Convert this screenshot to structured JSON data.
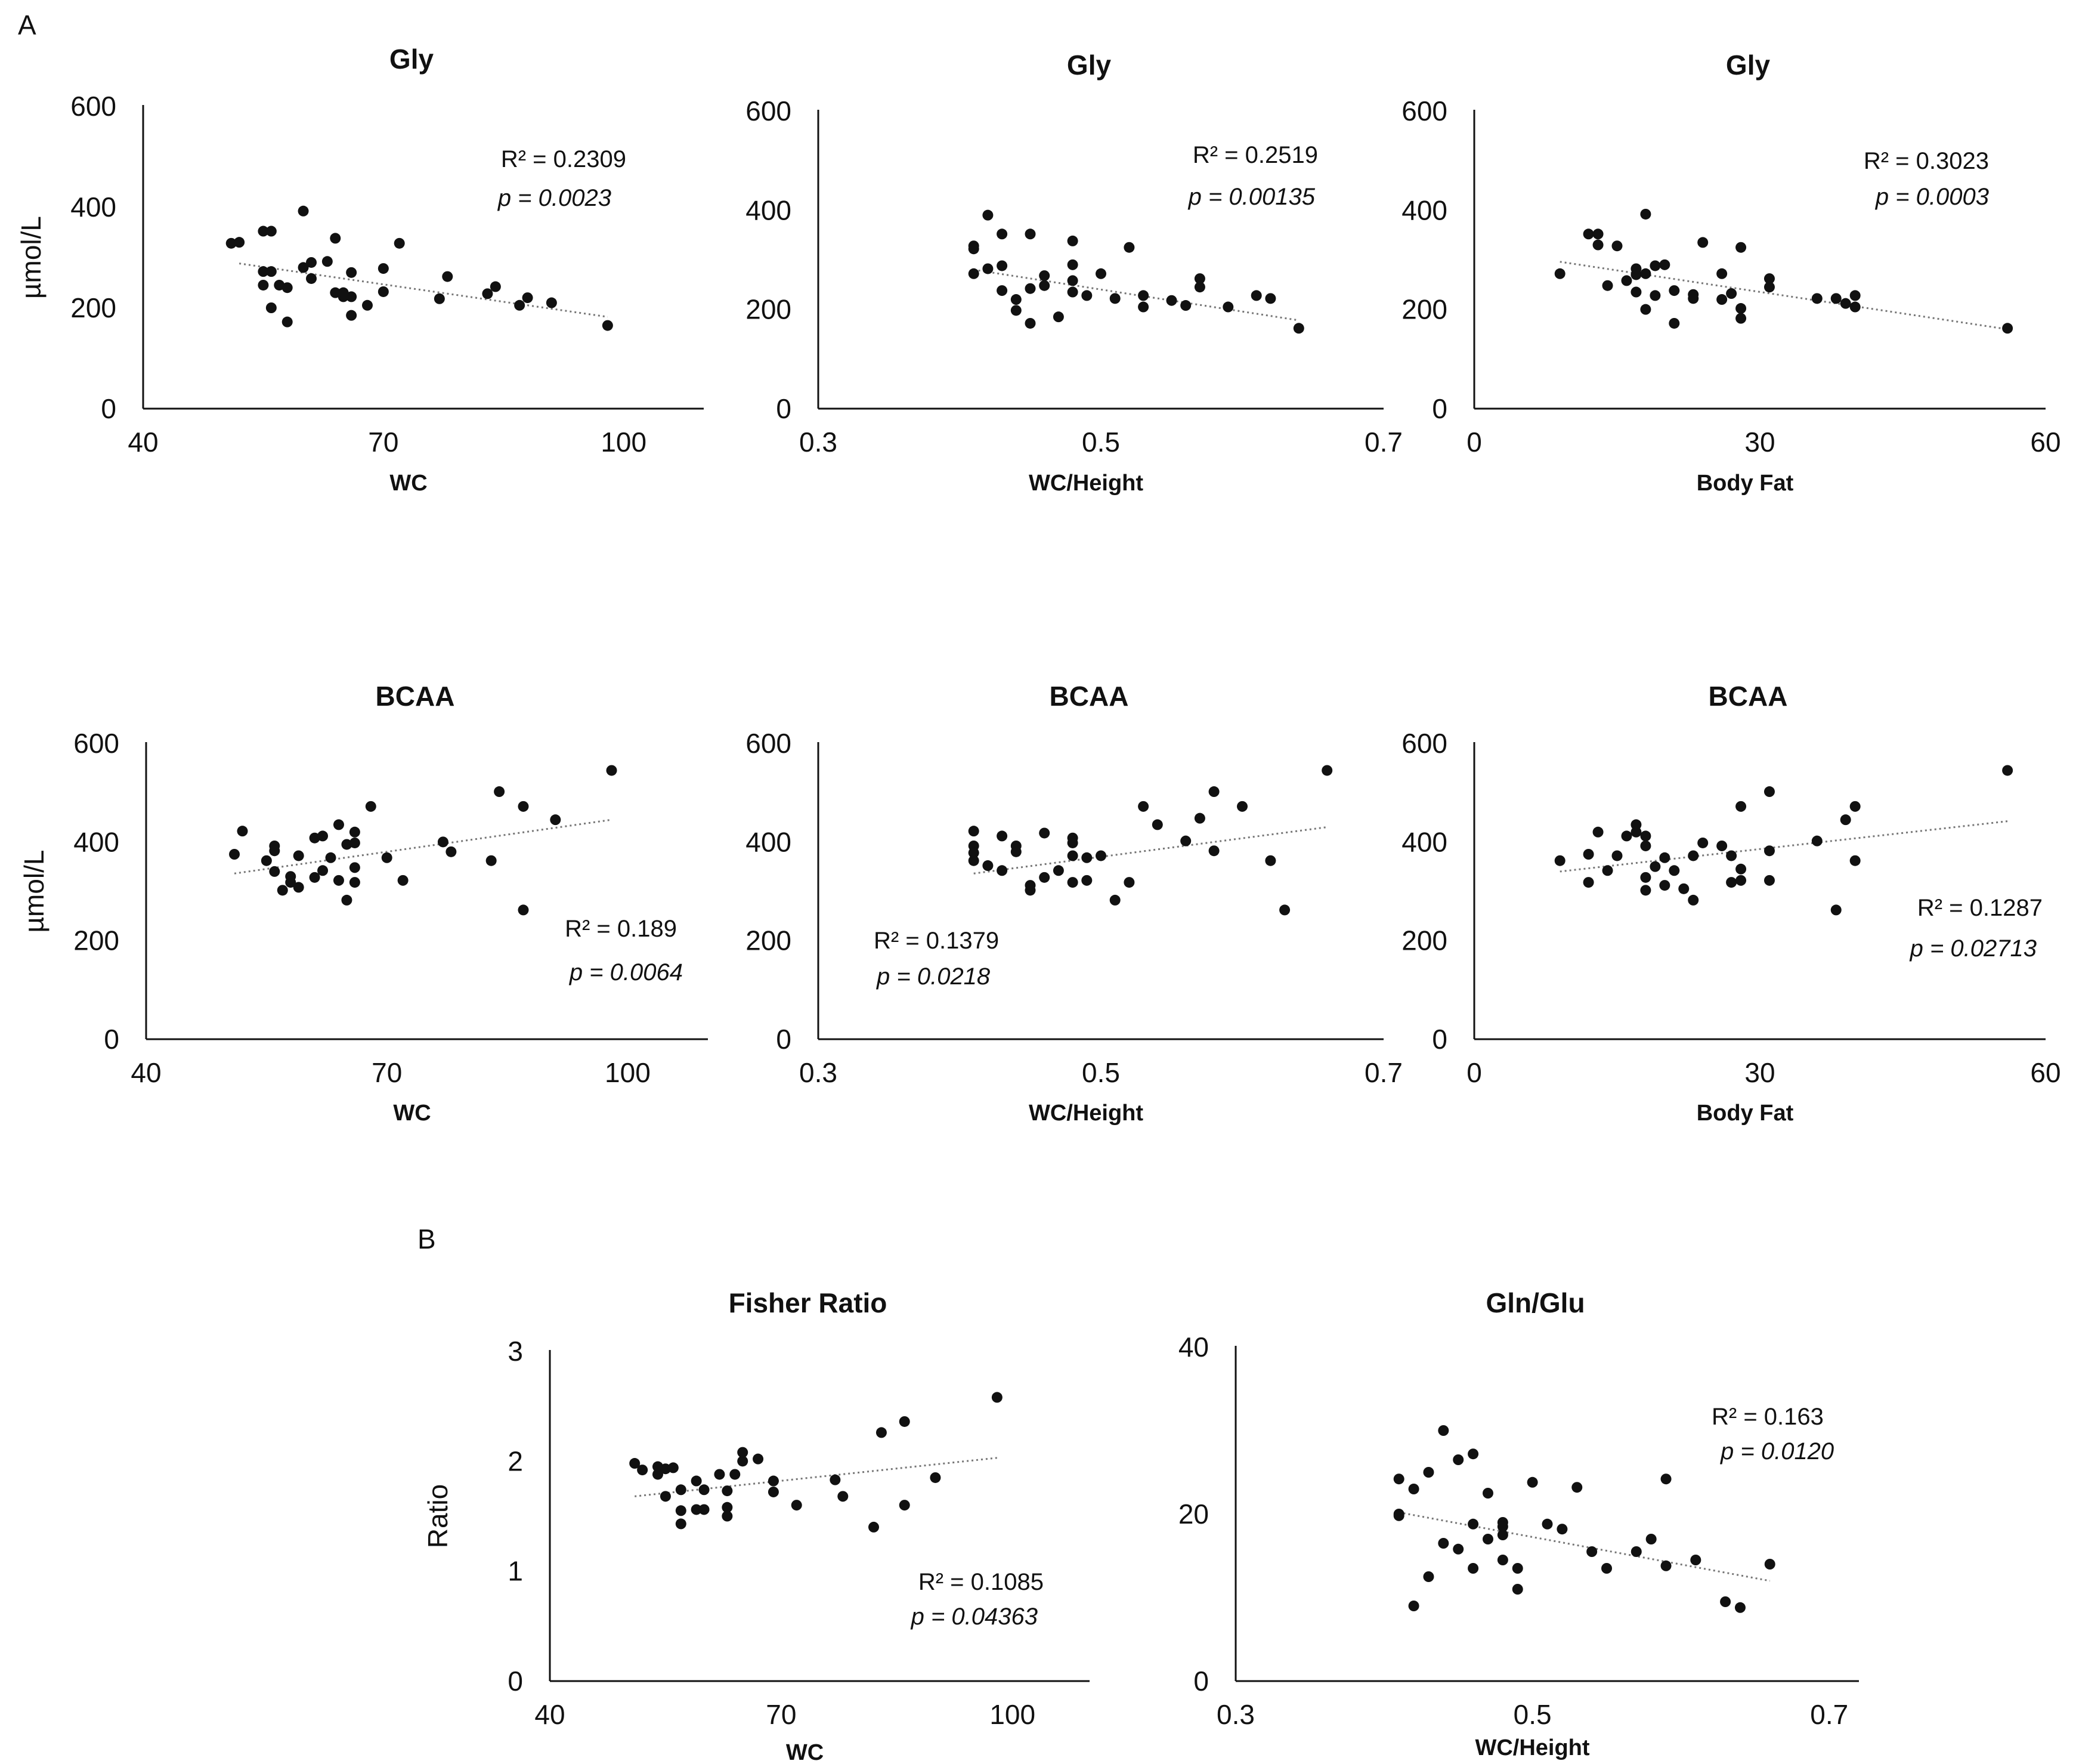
{
  "panel_labels": [
    "A",
    "B"
  ],
  "chart_data": [
    {
      "type": "scatter",
      "title": "Gly",
      "xlabel": "WC",
      "ylabel": "µmol/L",
      "xlim": [
        40,
        110
      ],
      "ylim": [
        0,
        600
      ],
      "xticks": [
        40,
        70,
        100
      ],
      "yticks": [
        0,
        200,
        400,
        600
      ],
      "trendline": {
        "x": [
          52,
          98
        ],
        "y": [
          288,
          182
        ]
      },
      "annotations": {
        "r2": "R² = 0.2309",
        "p": "p = 0.0023"
      },
      "points": [
        [
          51,
          328
        ],
        [
          52,
          330
        ],
        [
          55,
          352
        ],
        [
          56,
          352
        ],
        [
          55,
          272
        ],
        [
          56,
          272
        ],
        [
          55,
          245
        ],
        [
          56,
          200
        ],
        [
          57,
          245
        ],
        [
          58,
          240
        ],
        [
          58,
          172
        ],
        [
          60,
          392
        ],
        [
          60,
          280
        ],
        [
          61,
          290
        ],
        [
          61,
          258
        ],
        [
          63,
          292
        ],
        [
          64,
          338
        ],
        [
          64,
          230
        ],
        [
          65,
          222
        ],
        [
          65,
          230
        ],
        [
          66,
          222
        ],
        [
          66,
          270
        ],
        [
          66,
          185
        ],
        [
          68,
          205
        ],
        [
          70,
          232
        ],
        [
          70,
          278
        ],
        [
          72,
          328
        ],
        [
          77,
          218
        ],
        [
          78,
          262
        ],
        [
          83,
          228
        ],
        [
          84,
          242
        ],
        [
          87,
          205
        ],
        [
          88,
          220
        ],
        [
          91,
          210
        ],
        [
          98,
          165
        ]
      ]
    },
    {
      "type": "scatter",
      "title": "Gly",
      "xlabel": "WC/Height",
      "ylabel": "",
      "xlim": [
        0.3,
        0.7
      ],
      "ylim": [
        0,
        600
      ],
      "xticks": [
        0.3,
        0.5,
        0.7
      ],
      "yticks": [
        0,
        200,
        400,
        600
      ],
      "trendline": {
        "x": [
          0.41,
          0.64
        ],
        "y": [
          280,
          178
        ]
      },
      "annotations": {
        "r2": "R² = 0.2519",
        "p": "p = 0.00135"
      },
      "points": [
        [
          0.41,
          328
        ],
        [
          0.41,
          322
        ],
        [
          0.41,
          272
        ],
        [
          0.42,
          390
        ],
        [
          0.42,
          282
        ],
        [
          0.43,
          288
        ],
        [
          0.43,
          238
        ],
        [
          0.43,
          352
        ],
        [
          0.44,
          220
        ],
        [
          0.44,
          198
        ],
        [
          0.45,
          172
        ],
        [
          0.45,
          242
        ],
        [
          0.45,
          352
        ],
        [
          0.46,
          268
        ],
        [
          0.46,
          248
        ],
        [
          0.47,
          185
        ],
        [
          0.48,
          258
        ],
        [
          0.48,
          235
        ],
        [
          0.48,
          290
        ],
        [
          0.48,
          338
        ],
        [
          0.49,
          228
        ],
        [
          0.5,
          272
        ],
        [
          0.51,
          222
        ],
        [
          0.52,
          325
        ],
        [
          0.53,
          205
        ],
        [
          0.53,
          228
        ],
        [
          0.55,
          218
        ],
        [
          0.56,
          208
        ],
        [
          0.57,
          245
        ],
        [
          0.57,
          262
        ],
        [
          0.59,
          205
        ],
        [
          0.61,
          228
        ],
        [
          0.62,
          222
        ],
        [
          0.64,
          162
        ]
      ]
    },
    {
      "type": "scatter",
      "title": "Gly",
      "xlabel": "Body Fat",
      "ylabel": "",
      "xlim": [
        0,
        60
      ],
      "ylim": [
        0,
        600
      ],
      "xticks": [
        0,
        30,
        60
      ],
      "yticks": [
        0,
        200,
        400,
        600
      ],
      "trendline": {
        "x": [
          9,
          56
        ],
        "y": [
          296,
          160
        ]
      },
      "annotations": {
        "r2": "R² = 0.3023",
        "p": "p = 0.0003"
      },
      "points": [
        [
          9,
          272
        ],
        [
          12,
          352
        ],
        [
          13,
          352
        ],
        [
          13,
          330
        ],
        [
          14,
          248
        ],
        [
          15,
          328
        ],
        [
          16,
          258
        ],
        [
          17,
          235
        ],
        [
          17,
          270
        ],
        [
          17,
          282
        ],
        [
          18,
          272
        ],
        [
          18,
          392
        ],
        [
          18,
          200
        ],
        [
          19,
          288
        ],
        [
          19,
          228
        ],
        [
          20,
          290
        ],
        [
          21,
          238
        ],
        [
          21,
          172
        ],
        [
          23,
          230
        ],
        [
          23,
          222
        ],
        [
          24,
          335
        ],
        [
          26,
          220
        ],
        [
          26,
          272
        ],
        [
          27,
          232
        ],
        [
          28,
          325
        ],
        [
          28,
          202
        ],
        [
          28,
          182
        ],
        [
          31,
          262
        ],
        [
          31,
          245
        ],
        [
          36,
          222
        ],
        [
          38,
          222
        ],
        [
          39,
          212
        ],
        [
          40,
          228
        ],
        [
          40,
          205
        ],
        [
          56,
          162
        ]
      ]
    },
    {
      "type": "scatter",
      "title": "BCAA",
      "xlabel": "WC",
      "ylabel": "µmol/L",
      "xlim": [
        40,
        110
      ],
      "ylim": [
        0,
        600
      ],
      "xticks": [
        40,
        70,
        100
      ],
      "yticks": [
        0,
        200,
        400,
        600
      ],
      "trendline": {
        "x": [
          51,
          98
        ],
        "y": [
          336,
          445
        ]
      },
      "annotations": {
        "r2": "R² = 0.189",
        "p": "p = 0.0064"
      },
      "points": [
        [
          51,
          375
        ],
        [
          52,
          422
        ],
        [
          55,
          362
        ],
        [
          56,
          392
        ],
        [
          56,
          382
        ],
        [
          56,
          340
        ],
        [
          57,
          302
        ],
        [
          58,
          318
        ],
        [
          58,
          330
        ],
        [
          59,
          372
        ],
        [
          59,
          308
        ],
        [
          61,
          408
        ],
        [
          61,
          328
        ],
        [
          62,
          342
        ],
        [
          62,
          412
        ],
        [
          63,
          368
        ],
        [
          64,
          435
        ],
        [
          64,
          322
        ],
        [
          65,
          395
        ],
        [
          65,
          282
        ],
        [
          66,
          398
        ],
        [
          66,
          420
        ],
        [
          66,
          318
        ],
        [
          66,
          348
        ],
        [
          68,
          472
        ],
        [
          70,
          368
        ],
        [
          72,
          322
        ],
        [
          77,
          400
        ],
        [
          78,
          380
        ],
        [
          83,
          362
        ],
        [
          84,
          502
        ],
        [
          87,
          472
        ],
        [
          87,
          262
        ],
        [
          91,
          445
        ],
        [
          98,
          545
        ]
      ]
    },
    {
      "type": "scatter",
      "title": "BCAA",
      "xlabel": "WC/Height",
      "ylabel": "",
      "xlim": [
        0.3,
        0.7
      ],
      "ylim": [
        0,
        600
      ],
      "xticks": [
        0.3,
        0.5,
        0.7
      ],
      "yticks": [
        0,
        200,
        400,
        600
      ],
      "trendline": {
        "x": [
          0.41,
          0.66
        ],
        "y": [
          336,
          430
        ]
      },
      "annotations": {
        "r2": "R² = 0.1379",
        "p": "p = 0.0218"
      },
      "points": [
        [
          0.41,
          422
        ],
        [
          0.41,
          392
        ],
        [
          0.41,
          378
        ],
        [
          0.41,
          362
        ],
        [
          0.42,
          352
        ],
        [
          0.43,
          412
        ],
        [
          0.43,
          342
        ],
        [
          0.44,
          392
        ],
        [
          0.44,
          380
        ],
        [
          0.45,
          302
        ],
        [
          0.45,
          312
        ],
        [
          0.46,
          328
        ],
        [
          0.46,
          418
        ],
        [
          0.47,
          342
        ],
        [
          0.48,
          408
        ],
        [
          0.48,
          398
        ],
        [
          0.48,
          372
        ],
        [
          0.49,
          368
        ],
        [
          0.48,
          318
        ],
        [
          0.49,
          322
        ],
        [
          0.5,
          372
        ],
        [
          0.51,
          282
        ],
        [
          0.52,
          318
        ],
        [
          0.53,
          472
        ],
        [
          0.54,
          435
        ],
        [
          0.56,
          402
        ],
        [
          0.57,
          448
        ],
        [
          0.58,
          502
        ],
        [
          0.58,
          382
        ],
        [
          0.6,
          472
        ],
        [
          0.62,
          362
        ],
        [
          0.63,
          262
        ],
        [
          0.66,
          545
        ]
      ]
    },
    {
      "type": "scatter",
      "title": "BCAA",
      "xlabel": "Body Fat",
      "ylabel": "",
      "xlim": [
        0,
        60
      ],
      "ylim": [
        0,
        600
      ],
      "xticks": [
        0,
        30,
        60
      ],
      "yticks": [
        0,
        200,
        400,
        600
      ],
      "trendline": {
        "x": [
          9,
          56
        ],
        "y": [
          340,
          442
        ]
      },
      "annotations": {
        "r2": "R² = 0.1287",
        "p": "p = 0.02713"
      },
      "points": [
        [
          9,
          362
        ],
        [
          12,
          318
        ],
        [
          12,
          375
        ],
        [
          13,
          420
        ],
        [
          14,
          342
        ],
        [
          15,
          372
        ],
        [
          16,
          412
        ],
        [
          17,
          420
        ],
        [
          17,
          435
        ],
        [
          18,
          412
        ],
        [
          18,
          392
        ],
        [
          18,
          328
        ],
        [
          18,
          302
        ],
        [
          19,
          350
        ],
        [
          20,
          312
        ],
        [
          20,
          368
        ],
        [
          21,
          342
        ],
        [
          22,
          305
        ],
        [
          23,
          282
        ],
        [
          23,
          372
        ],
        [
          24,
          398
        ],
        [
          26,
          392
        ],
        [
          27,
          372
        ],
        [
          27,
          318
        ],
        [
          28,
          472
        ],
        [
          28,
          345
        ],
        [
          28,
          322
        ],
        [
          31,
          502
        ],
        [
          31,
          382
        ],
        [
          31,
          322
        ],
        [
          36,
          402
        ],
        [
          38,
          262
        ],
        [
          39,
          445
        ],
        [
          40,
          472
        ],
        [
          40,
          362
        ],
        [
          56,
          545
        ]
      ]
    },
    {
      "type": "scatter",
      "title": "Fisher Ratio",
      "xlabel": "WC",
      "ylabel": "Ratio",
      "xlim": [
        40,
        110
      ],
      "ylim": [
        0,
        3
      ],
      "xticks": [
        40,
        70,
        100
      ],
      "yticks": [
        0,
        1,
        2,
        3
      ],
      "trendline": {
        "x": [
          51,
          98
        ],
        "y": [
          1.68,
          2.03
        ]
      },
      "annotations": {
        "r2": "R² = 0.1085",
        "p": "p = 0.04363"
      },
      "points": [
        [
          51,
          1.98
        ],
        [
          52,
          1.92
        ],
        [
          54,
          1.88
        ],
        [
          54,
          1.95
        ],
        [
          55,
          1.93
        ],
        [
          55,
          1.68
        ],
        [
          56,
          1.94
        ],
        [
          57,
          1.74
        ],
        [
          57,
          1.55
        ],
        [
          57,
          1.43
        ],
        [
          59,
          1.56
        ],
        [
          59,
          1.82
        ],
        [
          60,
          1.56
        ],
        [
          60,
          1.74
        ],
        [
          62,
          1.88
        ],
        [
          63,
          1.73
        ],
        [
          63,
          1.58
        ],
        [
          63,
          1.5
        ],
        [
          64,
          1.88
        ],
        [
          65,
          2.0
        ],
        [
          65,
          2.08
        ],
        [
          67,
          2.02
        ],
        [
          69,
          1.82
        ],
        [
          69,
          1.72
        ],
        [
          72,
          1.6
        ],
        [
          77,
          1.83
        ],
        [
          78,
          1.68
        ],
        [
          82,
          1.4
        ],
        [
          83,
          2.26
        ],
        [
          86,
          2.36
        ],
        [
          86,
          1.6
        ],
        [
          90,
          1.85
        ],
        [
          98,
          2.58
        ]
      ]
    },
    {
      "type": "scatter",
      "title": "Gln/Glu",
      "xlabel": "WC/Height",
      "ylabel": "",
      "xlim": [
        0.3,
        0.72
      ],
      "ylim": [
        0,
        40
      ],
      "xticks": [
        0.3,
        0.5,
        0.7
      ],
      "yticks": [
        0,
        20,
        40
      ],
      "trendline": {
        "x": [
          0.41,
          0.66
        ],
        "y": [
          20.2,
          12.0
        ]
      },
      "annotations": {
        "r2": "R² = 0.163",
        "p": "p = 0.0120"
      },
      "points": [
        [
          0.41,
          20.0
        ],
        [
          0.41,
          19.8
        ],
        [
          0.41,
          24.2
        ],
        [
          0.42,
          23.0
        ],
        [
          0.42,
          9.0
        ],
        [
          0.43,
          25.0
        ],
        [
          0.43,
          12.5
        ],
        [
          0.44,
          16.5
        ],
        [
          0.44,
          30.0
        ],
        [
          0.45,
          15.8
        ],
        [
          0.45,
          26.5
        ],
        [
          0.46,
          27.2
        ],
        [
          0.46,
          13.5
        ],
        [
          0.46,
          18.8
        ],
        [
          0.47,
          17.0
        ],
        [
          0.47,
          22.5
        ],
        [
          0.48,
          19.0
        ],
        [
          0.48,
          14.5
        ],
        [
          0.48,
          17.5
        ],
        [
          0.48,
          18.5
        ],
        [
          0.49,
          13.5
        ],
        [
          0.49,
          11.0
        ],
        [
          0.5,
          23.8
        ],
        [
          0.51,
          18.8
        ],
        [
          0.52,
          18.2
        ],
        [
          0.53,
          23.2
        ],
        [
          0.54,
          15.5
        ],
        [
          0.55,
          13.5
        ],
        [
          0.57,
          15.5
        ],
        [
          0.58,
          17.0
        ],
        [
          0.59,
          24.2
        ],
        [
          0.59,
          13.8
        ],
        [
          0.61,
          14.5
        ],
        [
          0.63,
          9.5
        ],
        [
          0.64,
          8.8
        ],
        [
          0.66,
          14.0
        ]
      ]
    }
  ]
}
